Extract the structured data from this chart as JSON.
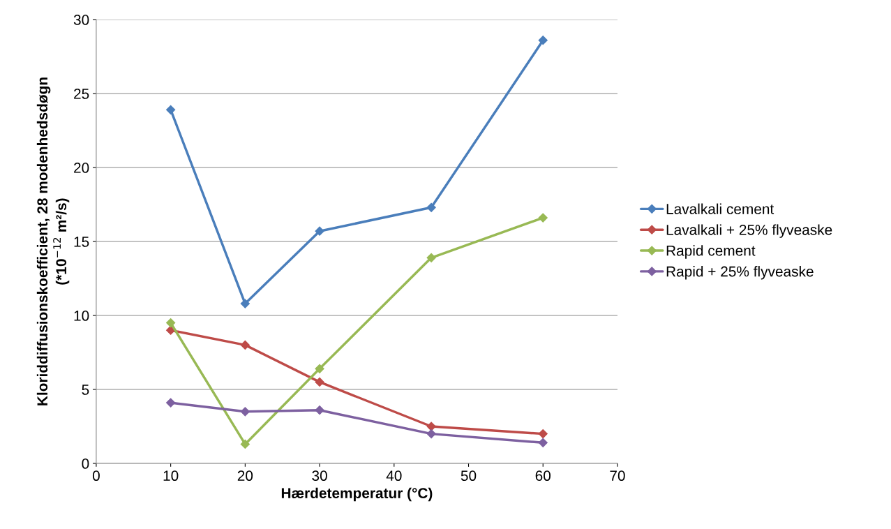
{
  "chart_data": {
    "type": "line",
    "xlabel": "Hærdetemperatur (°C)",
    "ylabel": "Kloriddiffusionskoefficient, 28 modenhedsdøgn\n(*10$^{−12}$ m²/s)",
    "x": [
      10,
      20,
      30,
      45,
      60
    ],
    "series": [
      {
        "name": "Lavalkali cement",
        "color": "#4a7ebb",
        "values": [
          23.9,
          10.8,
          15.7,
          17.3,
          28.6
        ]
      },
      {
        "name": "Lavalkali + 25% flyveaske",
        "color": "#be4b48",
        "values": [
          9.0,
          8.0,
          5.5,
          2.5,
          2.0
        ]
      },
      {
        "name": "Rapid cement",
        "color": "#98b954",
        "values": [
          9.5,
          1.3,
          6.4,
          13.9,
          16.6
        ]
      },
      {
        "name": "Rapid + 25% flyveaske",
        "color": "#7d60a0",
        "values": [
          4.1,
          3.5,
          3.6,
          2.0,
          1.4
        ]
      }
    ],
    "xlim": [
      0,
      70
    ],
    "xticks": [
      0,
      10,
      20,
      30,
      40,
      50,
      60,
      70
    ],
    "ylim": [
      0,
      30
    ],
    "yticks": [
      0,
      5,
      10,
      15,
      20,
      25,
      30
    ],
    "grid": "y",
    "legend": "right",
    "marker": "diamond",
    "line_style": "solid"
  }
}
